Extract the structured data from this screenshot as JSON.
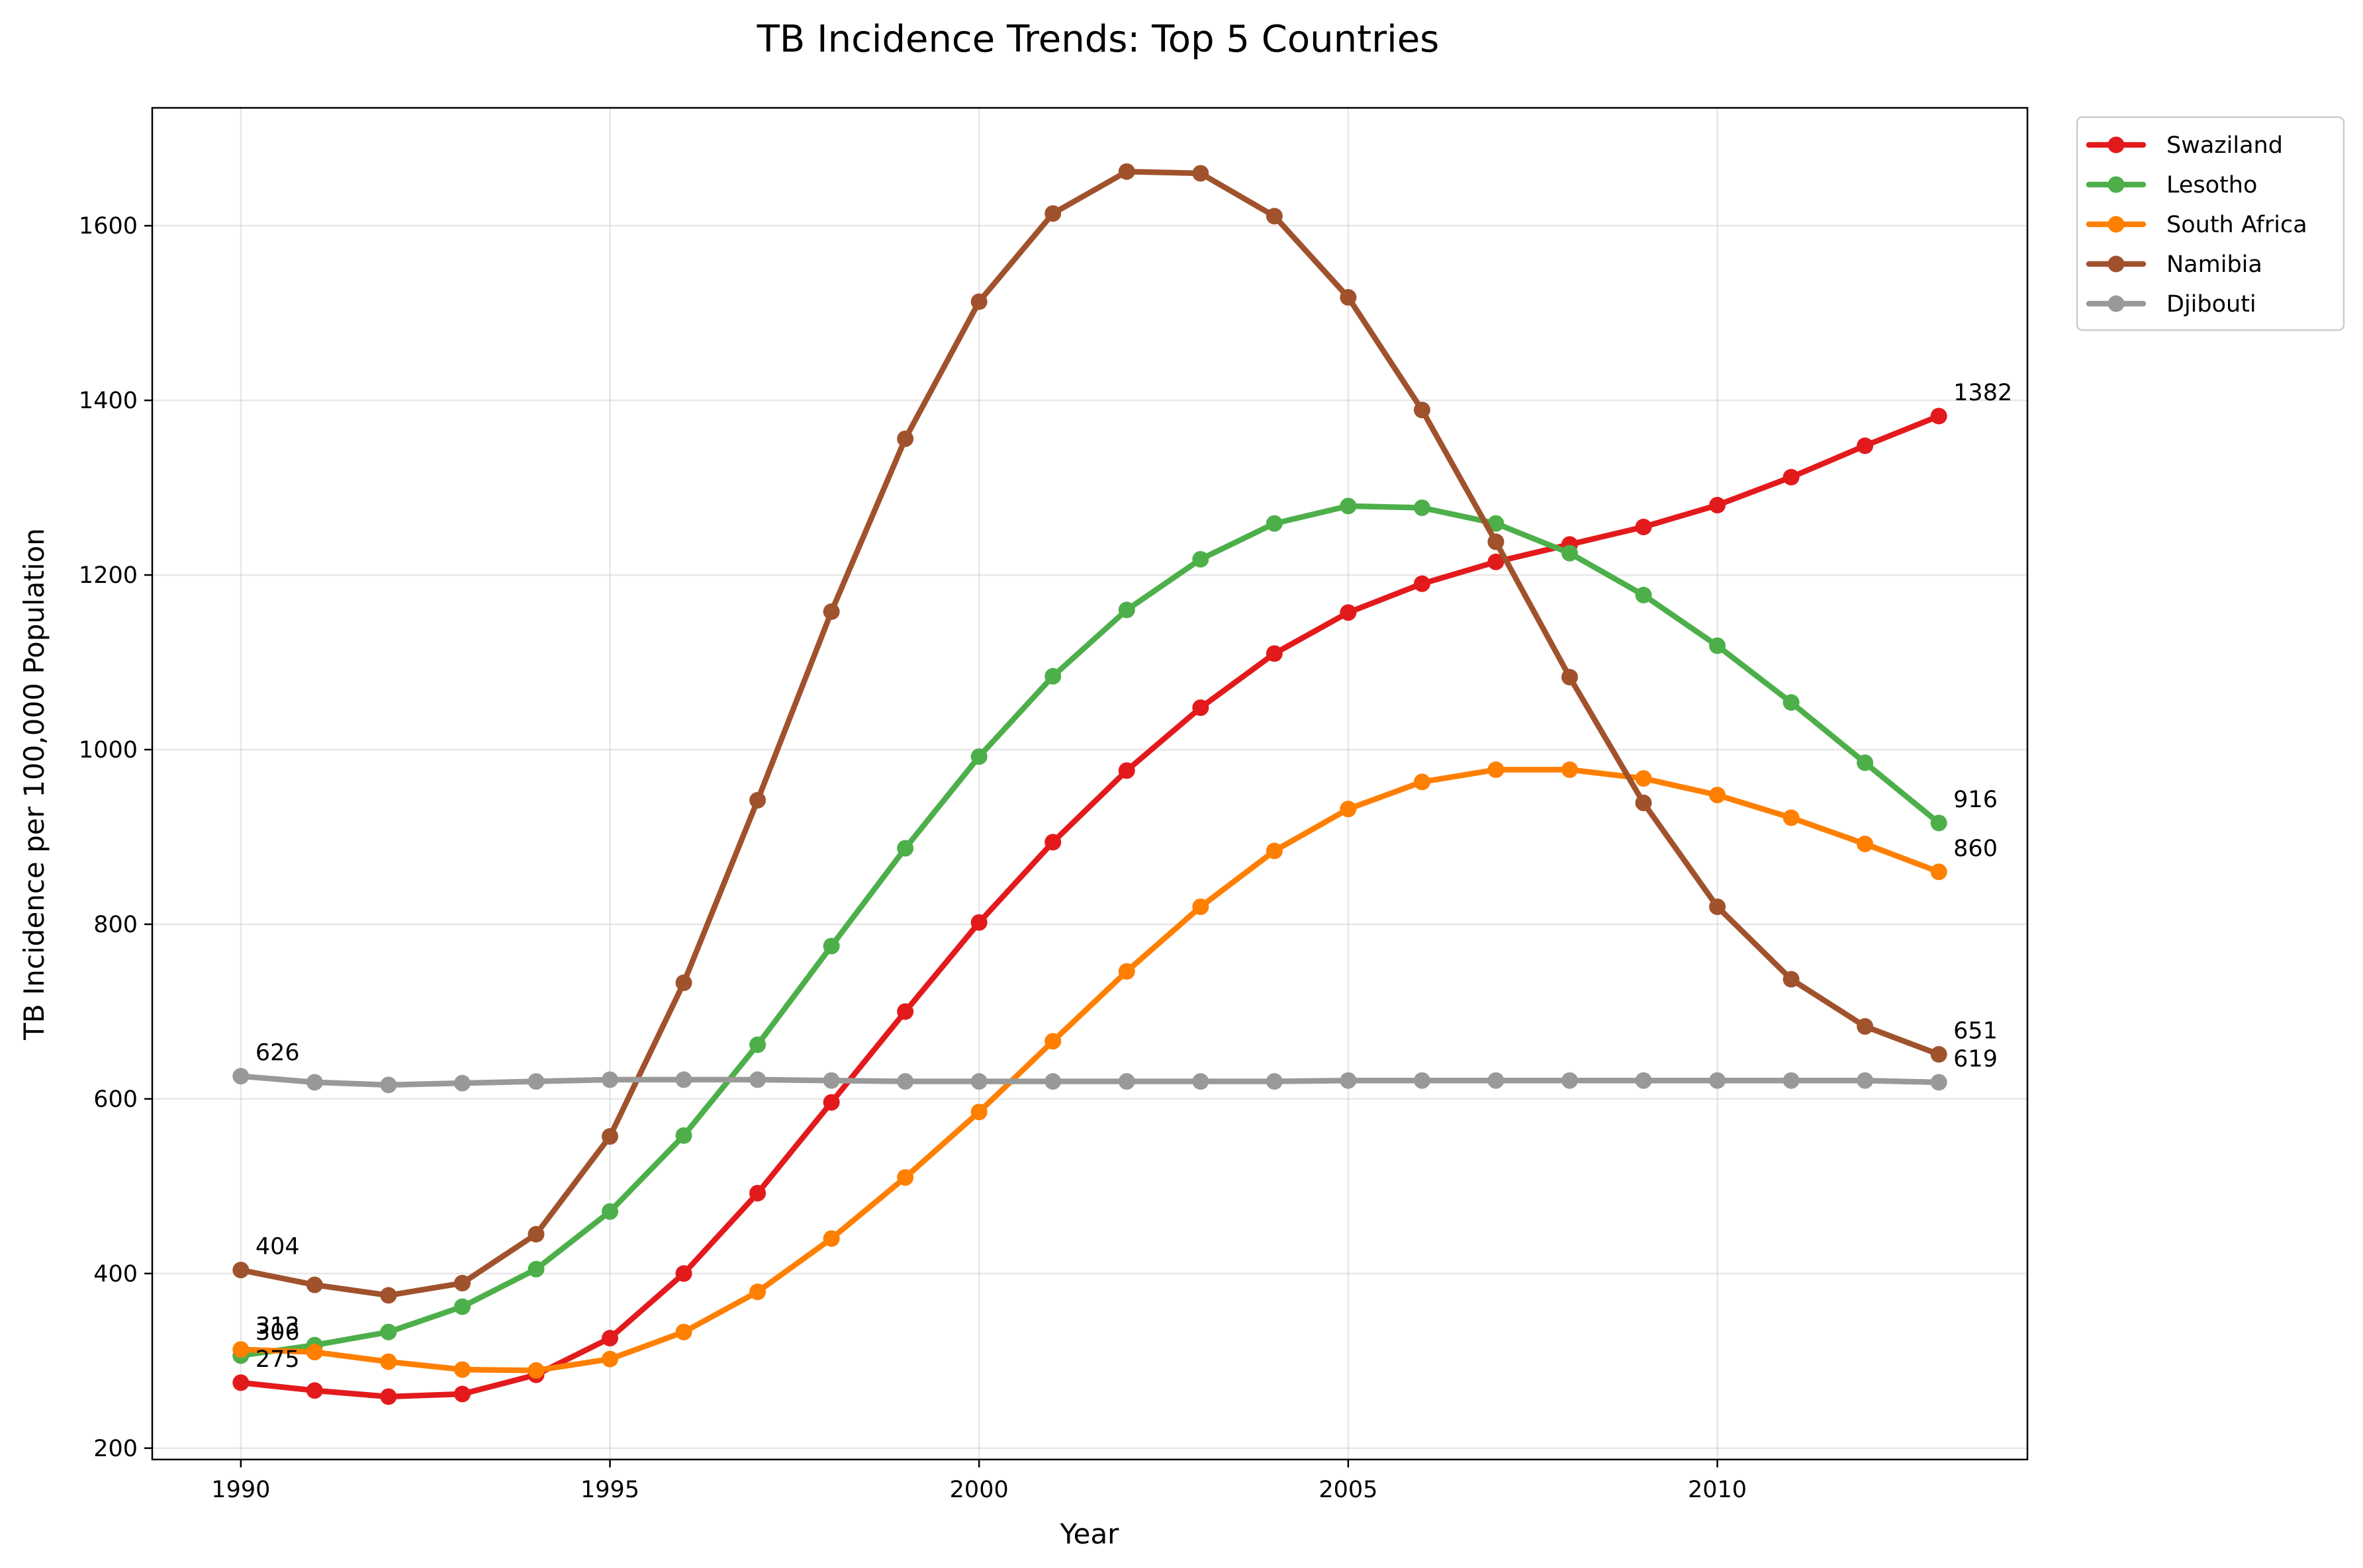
{
  "chart_data": {
    "type": "line",
    "title": "TB Incidence Trends: Top 5 Countries",
    "xlabel": "Year",
    "ylabel": "TB Incidence per 100,000 Population",
    "xlim": [
      1988.8,
      2014.2
    ],
    "ylim": [
      187,
      1735
    ],
    "xticks": [
      1990,
      1995,
      2000,
      2005,
      2010
    ],
    "yticks": [
      200,
      400,
      600,
      800,
      1000,
      1200,
      1400,
      1600
    ],
    "grid": true,
    "legend_position": "outside-top-right",
    "x": [
      1990,
      1991,
      1992,
      1993,
      1994,
      1995,
      1996,
      1997,
      1998,
      1999,
      2000,
      2001,
      2002,
      2003,
      2004,
      2005,
      2006,
      2007,
      2008,
      2009,
      2010,
      2011,
      2012,
      2013
    ],
    "series": [
      {
        "name": "Swaziland",
        "color": "#e31a1c",
        "values": [
          275,
          266,
          259,
          262,
          284,
          326,
          400,
          492,
          596,
          700,
          802,
          894,
          976,
          1048,
          1110,
          1157,
          1190,
          1215,
          1235,
          1255,
          1280,
          1312,
          1348,
          1382
        ],
        "annotations": [
          {
            "index": 0,
            "text": "275"
          },
          {
            "index": 23,
            "text": "1382"
          }
        ]
      },
      {
        "name": "Lesotho",
        "color": "#4daf4a",
        "values": [
          306,
          318,
          333,
          362,
          405,
          471,
          558,
          662,
          775,
          887,
          992,
          1084,
          1160,
          1218,
          1259,
          1279,
          1277,
          1259,
          1225,
          1177,
          1119,
          1054,
          985,
          916
        ],
        "annotations": [
          {
            "index": 0,
            "text": "306"
          },
          {
            "index": 23,
            "text": "916"
          }
        ]
      },
      {
        "name": "South Africa",
        "color": "#ff7f00",
        "values": [
          313,
          310,
          299,
          290,
          289,
          302,
          333,
          379,
          440,
          510,
          585,
          666,
          746,
          820,
          884,
          932,
          963,
          977,
          977,
          967,
          948,
          922,
          892,
          860
        ],
        "annotations": [
          {
            "index": 0,
            "text": "313"
          },
          {
            "index": 23,
            "text": "860"
          }
        ]
      },
      {
        "name": "Namibia",
        "color": "#a0522d",
        "values": [
          404,
          387,
          375,
          389,
          445,
          557,
          733,
          942,
          1158,
          1356,
          1513,
          1614,
          1662,
          1660,
          1611,
          1518,
          1389,
          1238,
          1083,
          939,
          820,
          737,
          683,
          651
        ],
        "annotations": [
          {
            "index": 0,
            "text": "404"
          },
          {
            "index": 23,
            "text": "651"
          }
        ]
      },
      {
        "name": "Djibouti",
        "color": "#999999",
        "values": [
          626,
          619,
          616,
          618,
          620,
          622,
          622,
          622,
          621,
          620,
          620,
          620,
          620,
          620,
          620,
          621,
          621,
          621,
          621,
          621,
          621,
          621,
          621,
          619
        ],
        "annotations": [
          {
            "index": 0,
            "text": "626"
          },
          {
            "index": 23,
            "text": "619"
          }
        ]
      }
    ]
  }
}
